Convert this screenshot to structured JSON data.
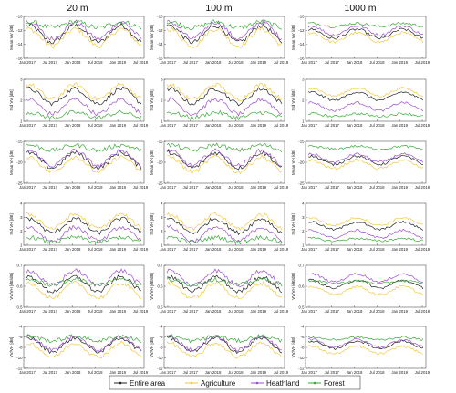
{
  "chart_data": {
    "type": "line",
    "columns": [
      "20 m",
      "100 m",
      "1000 m"
    ],
    "rows": [
      {
        "ylabel": "Mean VV [dB]",
        "ylim": [
          -16,
          -10
        ],
        "yticks": [
          -16,
          -14,
          -12,
          -10
        ],
        "base": {
          "Entire area": -12.5,
          "Agriculture": -13.0,
          "Heathland": -12.0,
          "Forest": -11.2
        },
        "amp": 1.2
      },
      {
        "ylabel": "Std VV [dB]",
        "ylim": [
          1,
          3
        ],
        "yticks": [
          1,
          2,
          3
        ],
        "base": {
          "Entire area": 2.2,
          "Agriculture": 2.4,
          "Heathland": 1.7,
          "Forest": 1.3
        },
        "amp": 0.35
      },
      {
        "ylabel": "Mean VH [dB]",
        "ylim": [
          -25,
          -15
        ],
        "yticks": [
          -25,
          -20,
          -15
        ],
        "base": {
          "Entire area": -19.5,
          "Agriculture": -20.5,
          "Heathland": -19.0,
          "Forest": -16.5
        },
        "amp": 1.8
      },
      {
        "ylabel": "Std VH [dB]",
        "ylim": [
          1,
          4
        ],
        "yticks": [
          1,
          2,
          3,
          4
        ],
        "base": {
          "Entire area": 2.4,
          "Agriculture": 2.7,
          "Heathland": 1.8,
          "Forest": 1.4
        },
        "amp": 0.5
      },
      {
        "ylabel": "VV/VH [dB/dB]",
        "ylim": [
          0.5,
          0.7
        ],
        "yticks": [
          0.5,
          0.6,
          0.7
        ],
        "base": {
          "Entire area": 0.61,
          "Agriculture": 0.58,
          "Heathland": 0.64,
          "Forest": 0.62
        },
        "amp": 0.035
      },
      {
        "ylabel": "VV/VH [dB]",
        "ylim": [
          -12,
          -4
        ],
        "yticks": [
          -12,
          -10,
          -8,
          -6,
          -4
        ],
        "base": {
          "Entire area": -7.5,
          "Agriculture": -8.5,
          "Heathland": -7.2,
          "Forest": -6.3
        },
        "amp": 1.3
      }
    ],
    "xticks": [
      "Jan 2017",
      "Jul 2017",
      "Jan 2018",
      "Jul 2018",
      "Jan 2019",
      "Jul 2019"
    ],
    "series": [
      {
        "name": "Entire area",
        "color": "#222222",
        "marker": "dot"
      },
      {
        "name": "Agriculture",
        "color": "#f2c744",
        "marker": "dot"
      },
      {
        "name": "Heathland",
        "color": "#9b4fd1",
        "marker": "dot"
      },
      {
        "name": "Forest",
        "color": "#3aa83a",
        "marker": "dot"
      }
    ],
    "legend": "bottom"
  }
}
